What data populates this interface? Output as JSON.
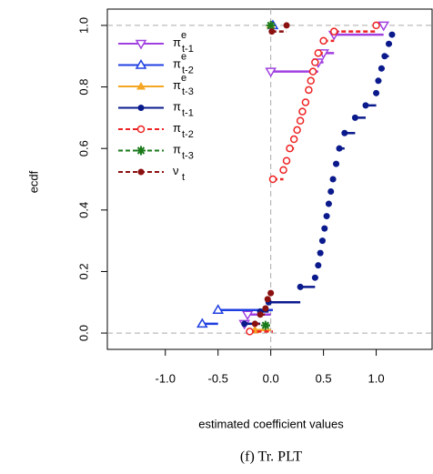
{
  "chart_data": {
    "type": "ecdf",
    "xlabel": "estimated coefficient values",
    "ylabel": "ecdf",
    "caption": "(f) Tr. PLT",
    "xlim": [
      -1.55,
      1.53
    ],
    "ylim": [
      -0.053,
      1.053
    ],
    "xticks": [
      {
        "value": -1.0,
        "label": "-1.0"
      },
      {
        "value": -0.5,
        "label": "-0.5"
      },
      {
        "value": 0.0,
        "label": "0.0"
      },
      {
        "value": 0.5,
        "label": "0.5"
      },
      {
        "value": 1.0,
        "label": "1.0"
      }
    ],
    "yticks": [
      {
        "value": 0.0,
        "label": "0.0"
      },
      {
        "value": 0.2,
        "label": "0.2"
      },
      {
        "value": 0.4,
        "label": "0.4"
      },
      {
        "value": 0.6,
        "label": "0.6"
      },
      {
        "value": 0.8,
        "label": "0.8"
      },
      {
        "value": 1.0,
        "label": "1.0"
      }
    ],
    "hlines": [
      0,
      1
    ],
    "vlines": [
      0
    ],
    "legend": "top-left",
    "series": [
      {
        "name": "π",
        "superscript": "e",
        "subscript": "t-1",
        "color": "#a040e0",
        "marker": "triangle-down",
        "dash": false,
        "x": [
          -0.25,
          -0.22,
          0.0,
          0.45,
          0.5,
          0.6,
          1.07
        ],
        "values": [
          0.03,
          0.06,
          0.85,
          0.88,
          0.91,
          0.97,
          1.0
        ]
      },
      {
        "name": "π",
        "superscript": "e",
        "subscript": "t-2",
        "color": "#1f3fe0",
        "marker": "triangle-up",
        "dash": false,
        "x": [
          -0.65,
          -0.5,
          0.02
        ],
        "values": [
          0.03,
          0.075,
          1.0
        ]
      },
      {
        "name": "π",
        "superscript": "e",
        "subscript": "t-3",
        "color": "#f5a623",
        "marker": "triangle-filled",
        "dash": false,
        "x": [
          -0.15,
          0.0
        ],
        "values": [
          0.01,
          1.0
        ]
      },
      {
        "name": "π",
        "subscript": "t-1",
        "color": "#0a1a8c",
        "marker": "circle-filled",
        "dash": false,
        "x": [
          -0.25,
          -0.1,
          -0.02,
          0.28,
          0.42,
          0.45,
          0.47,
          0.49,
          0.51,
          0.53,
          0.55,
          0.57,
          0.59,
          0.62,
          0.65,
          0.7,
          0.8,
          0.9,
          1.0,
          1.02,
          1.05,
          1.08,
          1.12,
          1.15
        ],
        "values": [
          0.03,
          0.07,
          0.1,
          0.15,
          0.18,
          0.22,
          0.26,
          0.3,
          0.34,
          0.38,
          0.42,
          0.46,
          0.5,
          0.55,
          0.6,
          0.65,
          0.7,
          0.74,
          0.78,
          0.82,
          0.86,
          0.9,
          0.94,
          0.97
        ]
      },
      {
        "name": "π",
        "subscript": "t-2",
        "color": "#ee2222",
        "marker": "circle-open",
        "dash": true,
        "x": [
          -0.2,
          0.02,
          0.12,
          0.15,
          0.18,
          0.22,
          0.25,
          0.28,
          0.3,
          0.33,
          0.36,
          0.38,
          0.4,
          0.42,
          0.45,
          0.5,
          0.6,
          1.0
        ],
        "values": [
          0.005,
          0.5,
          0.53,
          0.56,
          0.6,
          0.63,
          0.66,
          0.69,
          0.72,
          0.75,
          0.79,
          0.82,
          0.85,
          0.88,
          0.91,
          0.95,
          0.98,
          1.0
        ]
      },
      {
        "name": "π",
        "subscript": "t-3",
        "color": "#1a7a1a",
        "marker": "star",
        "dash": true,
        "x": [
          -0.05,
          0.0
        ],
        "values": [
          0.025,
          1.0
        ]
      },
      {
        "name": "ν",
        "subscript": "t",
        "color": "#8b1010",
        "marker": "circle-filled",
        "dash": true,
        "x": [
          -0.15,
          -0.1,
          -0.05,
          -0.03,
          0.0,
          0.01,
          0.15
        ],
        "values": [
          0.03,
          0.06,
          0.08,
          0.11,
          0.13,
          0.98,
          1.0
        ]
      }
    ]
  }
}
